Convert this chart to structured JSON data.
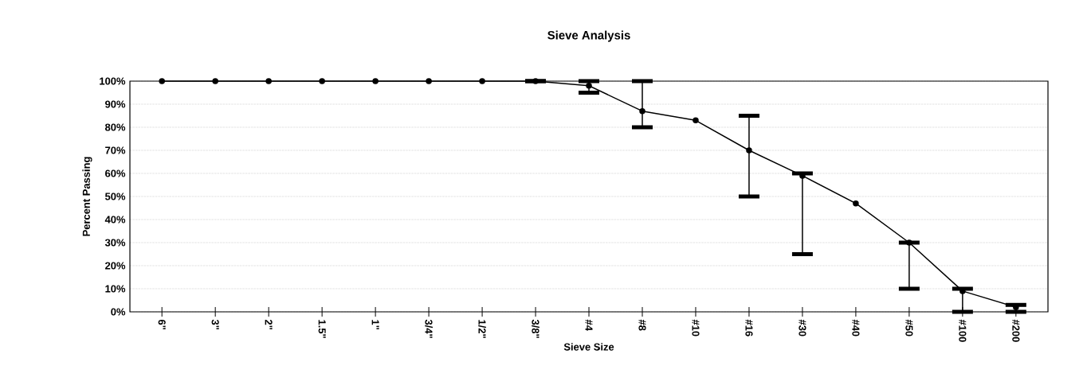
{
  "chart_data": {
    "type": "line",
    "title": "Sieve Analysis",
    "xlabel": "Sieve Size",
    "ylabel": "Percent Passing",
    "categories": [
      "6\"",
      "3\"",
      "2\"",
      "1.5\"",
      "1\"",
      "3/4\"",
      "1/2\"",
      "3/8\"",
      "#4",
      "#8",
      "#10",
      "#16",
      "#30",
      "#40",
      "#50",
      "#100",
      "#200"
    ],
    "series": [
      {
        "color": "#000000",
        "values": [
          100,
          100,
          100,
          100,
          100,
          100,
          100,
          100,
          98,
          87,
          83,
          70,
          59,
          47,
          30,
          9,
          2
        ],
        "errors": [
          null,
          null,
          null,
          null,
          null,
          null,
          null,
          [
            100,
            100
          ],
          [
            95,
            100
          ],
          [
            80,
            100
          ],
          null,
          [
            50,
            85
          ],
          [
            25,
            60
          ],
          null,
          [
            10,
            30
          ],
          [
            0,
            10
          ],
          [
            0,
            3
          ]
        ]
      }
    ],
    "ylim": [
      0,
      100
    ],
    "yticks": [
      {
        "value": 0,
        "label": "0%"
      },
      {
        "value": 10,
        "label": "10%"
      },
      {
        "value": 20,
        "label": "20%"
      },
      {
        "value": 30,
        "label": "30%"
      },
      {
        "value": 40,
        "label": "40%"
      },
      {
        "value": 50,
        "label": "50%"
      },
      {
        "value": 60,
        "label": "60%"
      },
      {
        "value": 70,
        "label": "70%"
      },
      {
        "value": 80,
        "label": "80%"
      },
      {
        "value": 90,
        "label": "90%"
      },
      {
        "value": 100,
        "label": "100%"
      }
    ],
    "grid": "y",
    "marker": "circle",
    "line_style": "solid"
  }
}
